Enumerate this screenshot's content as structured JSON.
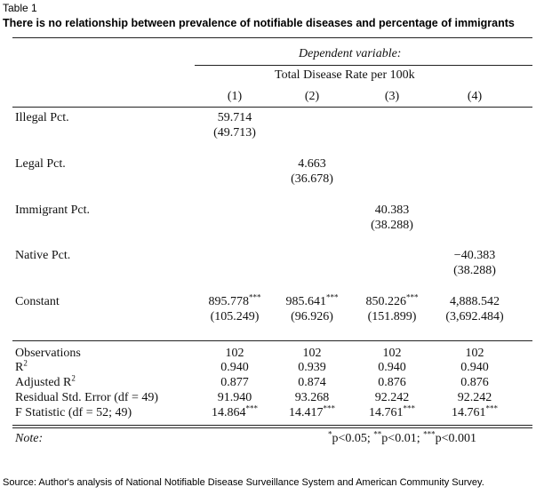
{
  "table_label": "Table 1",
  "title": "There is no relationship between prevalence of notifiable diseases and percentage of immigrants",
  "header": {
    "dependent_variable": "Dependent variable:",
    "dependent_name": "Total Disease Rate per 100k",
    "columns": [
      "(1)",
      "(2)",
      "(3)",
      "(4)"
    ]
  },
  "rows": [
    {
      "label": "Illegal Pct.",
      "col": 1,
      "coef": "59.714",
      "se": "(49.713)"
    },
    {
      "label": "Legal Pct.",
      "col": 2,
      "coef": "4.663",
      "se": "(36.678)"
    },
    {
      "label": "Immigrant Pct.",
      "col": 3,
      "coef": "40.383",
      "se": "(38.288)"
    },
    {
      "label": "Native Pct.",
      "col": 4,
      "coef": "−40.383",
      "se": "(38.288)"
    }
  ],
  "constant": {
    "label": "Constant",
    "coefs": [
      "895.778",
      "985.641",
      "850.226",
      "4,888.542"
    ],
    "stars": [
      "***",
      "***",
      "***",
      ""
    ],
    "ses": [
      "(105.249)",
      "(96.926)",
      "(151.899)",
      "(3,692.484)"
    ]
  },
  "stats": [
    {
      "label": "Observations",
      "values": [
        "102",
        "102",
        "102",
        "102"
      ]
    },
    {
      "label": "R",
      "sup": "2",
      "values": [
        "0.940",
        "0.939",
        "0.940",
        "0.940"
      ]
    },
    {
      "label": "Adjusted R",
      "sup": "2",
      "values": [
        "0.877",
        "0.874",
        "0.876",
        "0.876"
      ]
    },
    {
      "label": "Residual Std. Error (df = 49)",
      "values": [
        "91.940",
        "93.268",
        "92.242",
        "92.242"
      ]
    },
    {
      "label": "F Statistic (df = 52; 49)",
      "values": [
        "14.864",
        "14.417",
        "14.761",
        "14.761"
      ],
      "stars": [
        "***",
        "***",
        "***",
        "***"
      ]
    }
  ],
  "note": {
    "label": "Note:",
    "p1_star": "*",
    "p1": "p<0.05;",
    "p2_star": "**",
    "p2": "p<0.01;",
    "p3_star": "***",
    "p3": "p<0.001"
  },
  "source": "Source: Author's analysis of National Notifiable Disease Surveillance System and American Community Survey."
}
